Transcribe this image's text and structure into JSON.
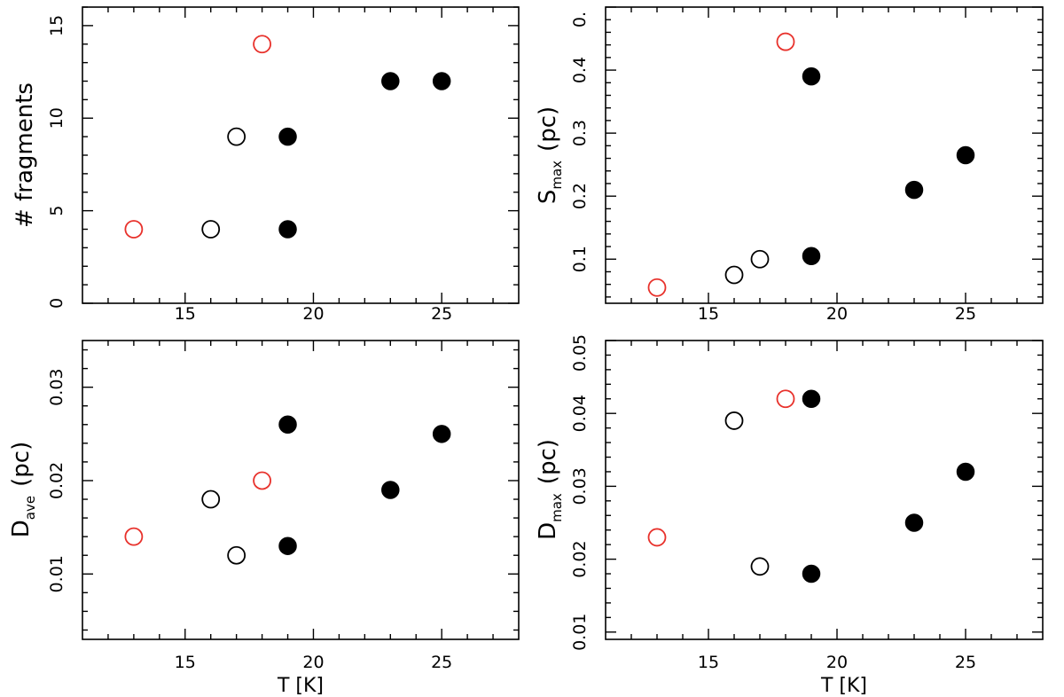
{
  "chart_data": [
    {
      "type": "scatter",
      "panel": "top-left",
      "xlim": [
        11,
        28
      ],
      "ylim": [
        0,
        16
      ],
      "xticks": [
        "15",
        "20",
        "25"
      ],
      "yticks": [
        "0",
        "5",
        "10",
        "15"
      ],
      "xlabel": "",
      "ylabel": "# fragments",
      "series": [
        {
          "name": "red open",
          "style": "open",
          "color": "#e8312b",
          "x": [
            13,
            18
          ],
          "y": [
            4,
            14
          ]
        },
        {
          "name": "black open",
          "style": "open",
          "color": "#000000",
          "x": [
            16,
            17
          ],
          "y": [
            4,
            9
          ]
        },
        {
          "name": "black filled",
          "style": "filled",
          "color": "#000000",
          "x": [
            19,
            19,
            23,
            25
          ],
          "y": [
            4,
            9,
            12,
            12
          ]
        }
      ]
    },
    {
      "type": "scatter",
      "panel": "top-right",
      "xlim": [
        11,
        28
      ],
      "ylim": [
        0.03,
        0.5
      ],
      "xticks": [
        "15",
        "20",
        "25"
      ],
      "yticks": [
        "0.1",
        "0.2",
        "0.3",
        "0.4",
        "0."
      ],
      "xlabel": "",
      "ylabel": "S",
      "ylabel_sub": "max",
      "ylabel_unit": "(pc)",
      "series": [
        {
          "name": "red open",
          "style": "open",
          "color": "#e8312b",
          "x": [
            13,
            18
          ],
          "y": [
            0.055,
            0.445
          ]
        },
        {
          "name": "black open",
          "style": "open",
          "color": "#000000",
          "x": [
            16,
            17
          ],
          "y": [
            0.075,
            0.1
          ]
        },
        {
          "name": "black filled",
          "style": "filled",
          "color": "#000000",
          "x": [
            19,
            19,
            23,
            25
          ],
          "y": [
            0.105,
            0.39,
            0.21,
            0.265
          ]
        }
      ]
    },
    {
      "type": "scatter",
      "panel": "bottom-left",
      "xlim": [
        11,
        28
      ],
      "ylim": [
        0.003,
        0.035
      ],
      "xticks": [
        "15",
        "20",
        "25"
      ],
      "yticks": [
        "0.01",
        "0.02",
        "0.03"
      ],
      "xlabel": "T [K]",
      "ylabel": "D",
      "ylabel_sub": "ave",
      "ylabel_unit": "(pc)",
      "series": [
        {
          "name": "red open",
          "style": "open",
          "color": "#e8312b",
          "x": [
            13,
            18
          ],
          "y": [
            0.014,
            0.02
          ]
        },
        {
          "name": "black open",
          "style": "open",
          "color": "#000000",
          "x": [
            16,
            17
          ],
          "y": [
            0.018,
            0.012
          ]
        },
        {
          "name": "black filled",
          "style": "filled",
          "color": "#000000",
          "x": [
            19,
            19,
            23,
            25
          ],
          "y": [
            0.026,
            0.013,
            0.019,
            0.025
          ]
        }
      ]
    },
    {
      "type": "scatter",
      "panel": "bottom-right",
      "xlim": [
        11,
        28
      ],
      "ylim": [
        0.009,
        0.05
      ],
      "xticks": [
        "15",
        "20",
        "25"
      ],
      "yticks": [
        "0.01",
        "0.02",
        "0.03",
        "0.04",
        "0.05"
      ],
      "xlabel": "T [K]",
      "ylabel": "D",
      "ylabel_sub": "max",
      "ylabel_unit": "(pc)",
      "series": [
        {
          "name": "red open",
          "style": "open",
          "color": "#e8312b",
          "x": [
            13,
            18
          ],
          "y": [
            0.023,
            0.042
          ]
        },
        {
          "name": "black open",
          "style": "open",
          "color": "#000000",
          "x": [
            16,
            17
          ],
          "y": [
            0.039,
            0.019
          ]
        },
        {
          "name": "black filled",
          "style": "filled",
          "color": "#000000",
          "x": [
            19,
            19,
            23,
            25
          ],
          "y": [
            0.042,
            0.018,
            0.025,
            0.032
          ]
        }
      ]
    }
  ]
}
